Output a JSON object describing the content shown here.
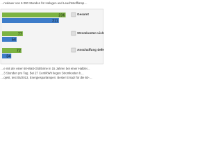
{
  "header_text": [
    "…nsdauer von 6 000 Stunden für Halogen und Leuchtstofflamp…"
  ],
  "chart_data": {
    "type": "bar",
    "orientation": "horizontal",
    "categories": [
      "Gesamt",
      "Stromkosten Lichtleistung",
      "Anschaffung defekter L…"
    ],
    "series": [
      {
        "color": "#7cb342",
        "values": [
          236,
          77,
          72
        ]
      },
      {
        "color": "#3d7cc9",
        "values": [
          211,
          54,
          34
        ]
      }
    ],
    "xlim": [
      0,
      250
    ]
  },
  "footer_text": [
    "…e mit der einer 60-Watt-Glühbirne in 15 Jahren bei einer Halblei…",
    "…3 Stunden pro Tag. Bei 27 Cent/kWh liegen Stromkosten b…",
    "…ojekt, test 05/2013, Energiesparlampen: Bester Ersatz für die 60-…"
  ]
}
